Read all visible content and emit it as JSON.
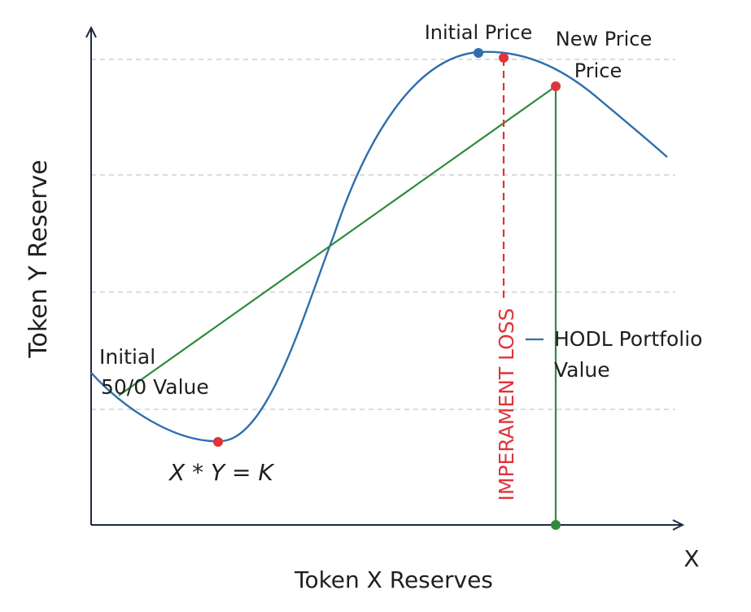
{
  "axes": {
    "y_label": "Token  Y Reserve",
    "x_label": "Token X Reserves",
    "x_end_label": "X"
  },
  "labels": {
    "initial_price": "Initial Price",
    "new_price_line1": "New Price",
    "new_price_line2": "Price",
    "initial_value_line1": "Initial",
    "initial_value_line2": "50/0 Value",
    "invariant": "X * Y = K",
    "impermanent_loss": "IMPERAMENT LOSS",
    "hodl_line1": "HODL Portfolio",
    "hodl_line2": "Value"
  },
  "colors": {
    "curve": "#2f6fad",
    "hodl_line": "#2e8b3a",
    "loss_line": "#e0333a",
    "axis": "#1f2a44",
    "grid": "#c8c8c8",
    "point_blue": "#2f6fad",
    "point_red": "#e0333a",
    "point_green": "#2e8b3a"
  }
}
